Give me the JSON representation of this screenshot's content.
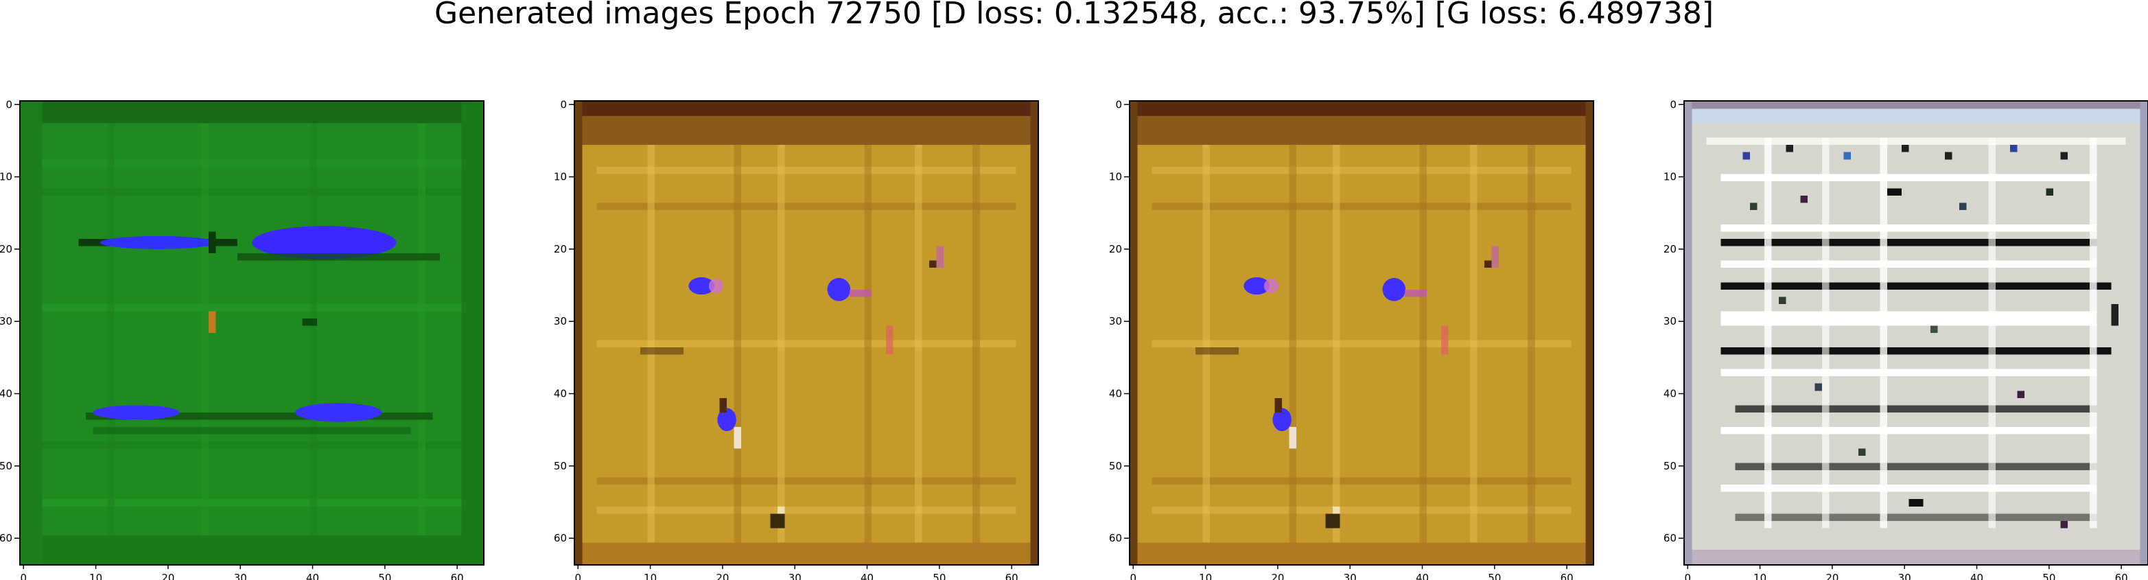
{
  "title": "Generated images Epoch 72750 [D loss: 0.132548, acc.: 93.75%] [G loss: 6.489738]",
  "panels": [
    {
      "name": "generated-image-1",
      "palette": "green",
      "base": "#1a8a1a"
    },
    {
      "name": "generated-image-2",
      "palette": "ochre",
      "base": "#c49a2a"
    },
    {
      "name": "generated-image-3",
      "palette": "ochre",
      "base": "#c49a2a"
    },
    {
      "name": "generated-image-4",
      "palette": "noise",
      "base": "#d8d8d0"
    }
  ],
  "axes": {
    "x_ticks": [
      "0",
      "10",
      "20",
      "30",
      "40",
      "50",
      "60"
    ],
    "y_ticks": [
      "0",
      "10",
      "20",
      "30",
      "40",
      "50",
      "60"
    ],
    "range": [
      0,
      64
    ]
  }
}
